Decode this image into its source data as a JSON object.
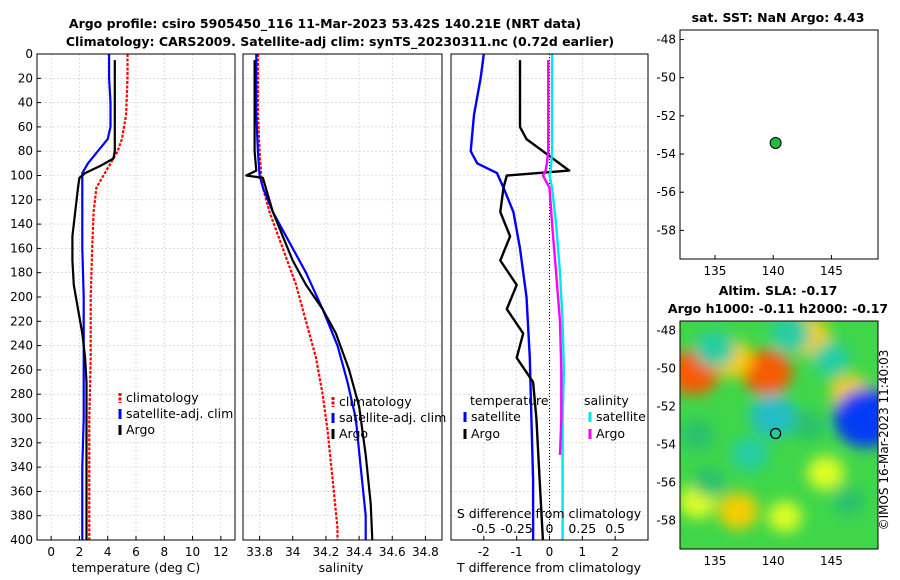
{
  "header": {
    "title_line1": "Argo profile: csiro 5905450_116 11-Mar-2023 53.42S 140.21E (NRT data)",
    "title_line2": "Climatology: CARS2009. Satellite-adj clim: synTS_20230311.nc (0.72d earlier)"
  },
  "credit": "©IMOS 16-Mar-2023 11:40:03",
  "colors": {
    "climatology": "#ff0000",
    "satellite": "#0000ff",
    "argo": "#000000",
    "satellite_salinity": "#00e5ee",
    "argo_salinity": "#ff00ff",
    "marker": "#22bb44"
  },
  "chart_data": [
    {
      "id": "temperature",
      "type": "line",
      "xlabel": "temperature (deg C)",
      "ylabel": "",
      "xlim": [
        -1,
        13
      ],
      "ylim": [
        400,
        0
      ],
      "xticks": [
        0,
        2,
        4,
        6,
        8,
        10,
        12
      ],
      "xtick_labels": [
        "0",
        "2",
        "4",
        "6",
        "8",
        "10",
        "12"
      ],
      "yticks": [
        0,
        20,
        40,
        60,
        80,
        100,
        120,
        140,
        160,
        180,
        200,
        220,
        240,
        260,
        280,
        300,
        320,
        340,
        360,
        380,
        400
      ],
      "ytick_labels": [
        "0",
        "20",
        "40",
        "60",
        "80",
        "100",
        "120",
        "140",
        "160",
        "180",
        "200",
        "220",
        "240",
        "260",
        "280",
        "300",
        "320",
        "340",
        "360",
        "380",
        "400"
      ],
      "grid": true,
      "legend": {
        "position": "middle-right",
        "entries": [
          "climatology",
          "satellite-adj. clim",
          "Argo"
        ]
      },
      "series": [
        {
          "name": "climatology",
          "color": "#ff0000",
          "dashed": true,
          "x": [
            5.4,
            5.4,
            5.3,
            5.0,
            4.7,
            4.2,
            3.7,
            3.2,
            3.0,
            2.9,
            2.8,
            2.8,
            2.7,
            2.7,
            2.7,
            2.7
          ],
          "depth": [
            0,
            20,
            50,
            70,
            80,
            90,
            100,
            110,
            130,
            160,
            200,
            250,
            300,
            340,
            380,
            400
          ]
        },
        {
          "name": "satellite-adj. clim",
          "color": "#0000ff",
          "x": [
            4.1,
            4.1,
            4.2,
            4.2,
            4.0,
            3.3,
            2.6,
            2.2,
            2.2,
            2.2,
            2.3,
            2.3,
            2.3,
            2.2,
            2.2,
            2.2
          ],
          "depth": [
            0,
            20,
            40,
            60,
            70,
            80,
            90,
            98,
            120,
            160,
            200,
            250,
            300,
            340,
            380,
            400
          ]
        },
        {
          "name": "Argo",
          "color": "#000000",
          "x": [
            4.5,
            4.5,
            4.5,
            4.5,
            4.4,
            3.5,
            2.4,
            2.0,
            1.9,
            1.7,
            1.5,
            1.5,
            1.6,
            1.9,
            2.2,
            2.4,
            2.5,
            2.5,
            2.5,
            2.5,
            2.5
          ],
          "depth": [
            5,
            30,
            60,
            80,
            86,
            92,
            98,
            102,
            110,
            130,
            150,
            170,
            190,
            210,
            230,
            250,
            270,
            300,
            340,
            380,
            400
          ]
        }
      ]
    },
    {
      "id": "salinity",
      "type": "line",
      "xlabel": "salinity",
      "ylabel": "",
      "xlim": [
        33.7,
        34.9
      ],
      "ylim": [
        400,
        0
      ],
      "xticks": [
        33.8,
        34.0,
        34.2,
        34.4,
        34.6,
        34.8
      ],
      "xtick_labels": [
        "33.8",
        "34",
        "34.2",
        "34.4",
        "34.6",
        "34.8"
      ],
      "grid": true,
      "legend": {
        "position": "middle-right",
        "entries": [
          "climatology",
          "satellite-adj. clim",
          "Argo"
        ]
      },
      "series": [
        {
          "name": "climatology",
          "color": "#ff0000",
          "dashed": true,
          "x": [
            33.79,
            33.79,
            33.8,
            33.81,
            33.82,
            33.86,
            33.94,
            34.02,
            34.08,
            34.14,
            34.18,
            34.21,
            34.24,
            34.27,
            34.27
          ],
          "depth": [
            0,
            50,
            80,
            100,
            110,
            130,
            160,
            190,
            220,
            250,
            280,
            310,
            350,
            390,
            400
          ]
        },
        {
          "name": "satellite-adj. clim",
          "color": "#0000ff",
          "x": [
            33.78,
            33.78,
            33.79,
            33.8,
            33.82,
            33.88,
            33.98,
            34.08,
            34.18,
            34.27,
            34.33,
            34.38,
            34.41,
            34.44,
            34.44
          ],
          "depth": [
            0,
            50,
            80,
            100,
            110,
            130,
            155,
            180,
            210,
            240,
            270,
            300,
            340,
            380,
            400
          ]
        },
        {
          "name": "Argo",
          "color": "#000000",
          "x": [
            33.77,
            33.77,
            33.77,
            33.78,
            33.72,
            33.82,
            33.88,
            33.94,
            34.0,
            34.08,
            34.18,
            34.26,
            34.34,
            34.4,
            34.44,
            34.47,
            34.48
          ],
          "depth": [
            5,
            40,
            80,
            96,
            100,
            102,
            130,
            150,
            170,
            190,
            210,
            230,
            260,
            290,
            330,
            370,
            400
          ]
        }
      ]
    },
    {
      "id": "difference",
      "type": "line",
      "xlabel": "T difference from climatology",
      "xlabel_top": "S difference from climatology",
      "ylim": [
        400,
        0
      ],
      "xlim": [
        -3,
        3
      ],
      "xticks": [
        -2,
        -1,
        0,
        1,
        2
      ],
      "xtick_labels": [
        "-2",
        "-1",
        "0",
        "1",
        "2"
      ],
      "s_ticks": [
        -0.5,
        -0.25,
        0,
        0.25,
        0.5
      ],
      "s_tick_labels": [
        "-0.5",
        "-0.25",
        "0",
        "0.25",
        "0.5"
      ],
      "grid": true,
      "zero_line": "dotted",
      "legend": {
        "position": "bottom",
        "temperature_title": "temperature",
        "salinity_title": "salinity",
        "temperature_entries": [
          "satellite",
          "Argo"
        ],
        "salinity_entries": [
          "satellite",
          "Argo"
        ]
      },
      "series": [
        {
          "name": "T satellite",
          "color": "#0000ff",
          "x": [
            -2.0,
            -2.1,
            -2.3,
            -2.4,
            -2.2,
            -1.6,
            -1.4,
            -1.1,
            -0.9,
            -0.7,
            -0.6,
            -0.55,
            -0.5,
            -0.5
          ],
          "depth": [
            0,
            20,
            50,
            80,
            90,
            98,
            110,
            130,
            160,
            200,
            250,
            300,
            350,
            400
          ]
        },
        {
          "name": "T Argo",
          "color": "#000000",
          "x": [
            -0.9,
            -0.9,
            -0.9,
            -0.7,
            -0.2,
            0.6,
            -1.3,
            -1.4,
            -1.5,
            -1.2,
            -1.5,
            -1.0,
            -1.3,
            -0.8,
            -1.0,
            -0.5,
            -0.4,
            -0.3,
            -0.2
          ],
          "depth": [
            5,
            30,
            60,
            70,
            80,
            96,
            100,
            110,
            130,
            150,
            170,
            190,
            210,
            230,
            250,
            270,
            300,
            350,
            400
          ]
        },
        {
          "name": "S satellite",
          "color": "#00e5ee",
          "x": [
            0.02,
            0.02,
            0.02,
            0.01,
            0.0,
            0.02,
            0.05,
            0.08,
            0.1,
            0.11,
            0.1,
            0.1,
            0.1
          ],
          "depth": [
            0,
            50,
            80,
            96,
            100,
            110,
            140,
            180,
            220,
            260,
            300,
            350,
            400
          ],
          "unit": "S"
        },
        {
          "name": "S Argo",
          "color": "#ff00ff",
          "x": [
            -0.01,
            -0.01,
            -0.01,
            -0.02,
            -0.03,
            -0.05,
            0.0,
            0.02,
            0.05,
            0.08,
            0.09,
            0.09,
            0.08
          ],
          "depth": [
            5,
            40,
            80,
            90,
            96,
            100,
            110,
            140,
            180,
            220,
            260,
            300,
            330
          ],
          "unit": "S"
        }
      ]
    },
    {
      "id": "sst_map",
      "type": "scatter",
      "title": "sat. SST: NaN Argo: 4.43",
      "xlim": [
        132,
        149
      ],
      "ylim": [
        -59.5,
        -47.5
      ],
      "xticks": [
        135,
        140,
        145
      ],
      "xtick_labels": [
        "135",
        "140",
        "145"
      ],
      "yticks": [
        -48,
        -50,
        -52,
        -54,
        -56,
        -58
      ],
      "ytick_labels": [
        "-48",
        "-50",
        "-52",
        "-54",
        "-56",
        "-58"
      ],
      "points": [
        {
          "x": 140.21,
          "y": -53.42,
          "color": "#22bb44"
        }
      ]
    },
    {
      "id": "sla_map",
      "type": "heatmap",
      "title_line1": "Altim. SLA: -0.17",
      "title_line2": "Argo h1000: -0.11 h2000: -0.17",
      "xlim": [
        132,
        149
      ],
      "ylim": [
        -59.5,
        -47.5
      ],
      "xticks": [
        135,
        140,
        145
      ],
      "xtick_labels": [
        "135",
        "140",
        "145"
      ],
      "yticks": [
        -48,
        -50,
        -52,
        -54,
        -56,
        -58
      ],
      "ytick_labels": [
        "-48",
        "-50",
        "-52",
        "-54",
        "-56",
        "-58"
      ],
      "points": [
        {
          "x": 140.21,
          "y": -53.42
        }
      ],
      "field_blobs": [
        {
          "x": 133.2,
          "y": -50.2,
          "value": 0.9
        },
        {
          "x": 139.5,
          "y": -50.2,
          "value": 0.9
        },
        {
          "x": 136.5,
          "y": -49.5,
          "value": 0.6
        },
        {
          "x": 143.0,
          "y": -48.3,
          "value": 0.7
        },
        {
          "x": 146.6,
          "y": -51.3,
          "value": 0.6
        },
        {
          "x": 144.5,
          "y": -55.5,
          "value": 0.5
        },
        {
          "x": 137.0,
          "y": -57.5,
          "value": 0.6
        },
        {
          "x": 141.0,
          "y": -57.8,
          "value": 0.4
        },
        {
          "x": 133.5,
          "y": -57.0,
          "value": 0.5
        },
        {
          "x": 140.0,
          "y": -52.5,
          "value": -0.8
        },
        {
          "x": 135.0,
          "y": -49.0,
          "value": -0.6
        },
        {
          "x": 138.0,
          "y": -54.5,
          "value": -0.5
        },
        {
          "x": 148.0,
          "y": -52.6,
          "value": -1.4
        },
        {
          "x": 141.5,
          "y": -48.2,
          "value": -0.6
        },
        {
          "x": 133.5,
          "y": -53.5,
          "value": -0.4
        },
        {
          "x": 145.0,
          "y": -49.5,
          "value": -0.5
        },
        {
          "x": 143.0,
          "y": -53.0,
          "value": -0.35
        },
        {
          "x": 134.5,
          "y": -56.0,
          "value": -0.35
        },
        {
          "x": 146.5,
          "y": -57.0,
          "value": -0.3
        }
      ]
    }
  ]
}
